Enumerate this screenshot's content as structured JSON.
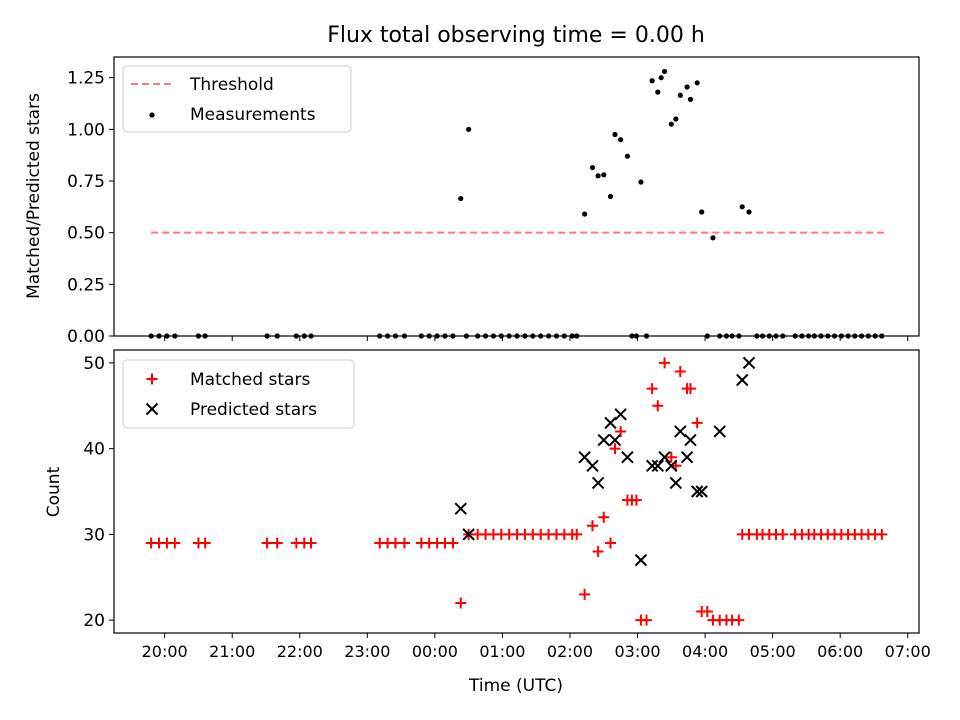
{
  "colors": {
    "threshold": "#ff7b7b",
    "measurements": "#000000",
    "matched": "#ff0000",
    "predicted": "#000000",
    "axes": "#000000"
  },
  "chart_data": [
    {
      "type": "scatter",
      "title": "Flux total observing time = 0.00 h",
      "xlabel": "",
      "ylabel": "Matched/Predicted stars",
      "xlim": [
        "19:15",
        "07:10"
      ],
      "ylim": [
        0,
        1.35
      ],
      "yticks": [
        0.0,
        0.25,
        0.5,
        0.75,
        1.0,
        1.25
      ],
      "ytick_labels": [
        "0.00",
        "0.25",
        "0.50",
        "0.75",
        "1.00",
        "1.25"
      ],
      "legend": {
        "placement": "upper-left",
        "entries": [
          {
            "label": "Threshold",
            "style": "dashed-line"
          },
          {
            "label": "Measurements",
            "style": "dot"
          }
        ]
      },
      "threshold": {
        "value": 0.5,
        "x_start": "19:48",
        "x_end": "06:40"
      },
      "series": [
        {
          "name": "Measurements",
          "marker": "dot",
          "points": [
            [
              "19:48",
              0
            ],
            [
              "19:55",
              0
            ],
            [
              "20:02",
              0
            ],
            [
              "20:09",
              0
            ],
            [
              "20:30",
              0
            ],
            [
              "20:36",
              0
            ],
            [
              "21:31",
              0
            ],
            [
              "21:40",
              0
            ],
            [
              "21:57",
              0
            ],
            [
              "22:04",
              0
            ],
            [
              "22:10",
              0
            ],
            [
              "23:11",
              0
            ],
            [
              "23:18",
              0
            ],
            [
              "23:25",
              0
            ],
            [
              "23:33",
              0
            ],
            [
              "23:48",
              0
            ],
            [
              "23:55",
              0
            ],
            [
              "00:02",
              0
            ],
            [
              "00:09",
              0
            ],
            [
              "00:16",
              0
            ],
            [
              "00:23",
              0.665
            ],
            [
              "00:28",
              0
            ],
            [
              "00:30",
              1.0
            ],
            [
              "00:38",
              0
            ],
            [
              "00:45",
              0
            ],
            [
              "00:52",
              0
            ],
            [
              "00:59",
              0
            ],
            [
              "01:06",
              0
            ],
            [
              "01:13",
              0
            ],
            [
              "01:20",
              0
            ],
            [
              "01:27",
              0
            ],
            [
              "01:34",
              0
            ],
            [
              "01:41",
              0
            ],
            [
              "01:48",
              0
            ],
            [
              "01:55",
              0
            ],
            [
              "02:02",
              0
            ],
            [
              "02:06",
              0
            ],
            [
              "02:13",
              0.59
            ],
            [
              "02:20",
              0.815
            ],
            [
              "02:25",
              0.775
            ],
            [
              "02:30",
              0.78
            ],
            [
              "02:36",
              0.675
            ],
            [
              "02:40",
              0.975
            ],
            [
              "02:45",
              0.95
            ],
            [
              "02:51",
              0.87
            ],
            [
              "02:55",
              0
            ],
            [
              "02:59",
              0
            ],
            [
              "03:03",
              0.745
            ],
            [
              "03:08",
              0
            ],
            [
              "03:13",
              1.235
            ],
            [
              "03:18",
              1.18
            ],
            [
              "03:21",
              1.25
            ],
            [
              "03:24",
              1.28
            ],
            [
              "03:30",
              1.025
            ],
            [
              "03:34",
              1.05
            ],
            [
              "03:38",
              1.165
            ],
            [
              "03:44",
              1.205
            ],
            [
              "03:47",
              1.145
            ],
            [
              "03:53",
              1.225
            ],
            [
              "03:57",
              0.6
            ],
            [
              "04:02",
              0
            ],
            [
              "04:07",
              0.475
            ],
            [
              "04:13",
              0
            ],
            [
              "04:19",
              0
            ],
            [
              "04:24",
              0
            ],
            [
              "04:30",
              0
            ],
            [
              "04:33",
              0.625
            ],
            [
              "04:39",
              0.6
            ],
            [
              "04:46",
              0
            ],
            [
              "04:51",
              0
            ],
            [
              "04:57",
              0
            ],
            [
              "05:03",
              0
            ],
            [
              "05:09",
              0
            ],
            [
              "05:20",
              0
            ],
            [
              "05:26",
              0
            ],
            [
              "05:32",
              0
            ],
            [
              "05:37",
              0
            ],
            [
              "05:43",
              0
            ],
            [
              "05:49",
              0
            ],
            [
              "05:55",
              0
            ],
            [
              "06:01",
              0
            ],
            [
              "06:07",
              0
            ],
            [
              "06:13",
              0
            ],
            [
              "06:19",
              0
            ],
            [
              "06:25",
              0
            ],
            [
              "06:31",
              0
            ],
            [
              "06:37",
              0
            ]
          ]
        }
      ]
    },
    {
      "type": "scatter",
      "title": "",
      "xlabel": "Time (UTC)",
      "ylabel": "Count",
      "xlim": [
        "19:15",
        "07:10"
      ],
      "ylim": [
        18.5,
        51.5
      ],
      "yticks": [
        20,
        30,
        40,
        50
      ],
      "xticks": [
        "20:00",
        "21:00",
        "22:00",
        "23:00",
        "00:00",
        "01:00",
        "02:00",
        "03:00",
        "04:00",
        "05:00",
        "06:00",
        "07:00"
      ],
      "legend": {
        "placement": "upper-left",
        "entries": [
          {
            "label": "Matched stars",
            "style": "plus"
          },
          {
            "label": "Predicted stars",
            "style": "cross"
          }
        ]
      },
      "series": [
        {
          "name": "Matched stars",
          "marker": "plus",
          "points": [
            [
              "19:48",
              29
            ],
            [
              "19:55",
              29
            ],
            [
              "20:02",
              29
            ],
            [
              "20:09",
              29
            ],
            [
              "20:30",
              29
            ],
            [
              "20:36",
              29
            ],
            [
              "21:31",
              29
            ],
            [
              "21:40",
              29
            ],
            [
              "21:57",
              29
            ],
            [
              "22:04",
              29
            ],
            [
              "22:10",
              29
            ],
            [
              "23:11",
              29
            ],
            [
              "23:18",
              29
            ],
            [
              "23:25",
              29
            ],
            [
              "23:33",
              29
            ],
            [
              "23:48",
              29
            ],
            [
              "23:55",
              29
            ],
            [
              "00:02",
              29
            ],
            [
              "00:09",
              29
            ],
            [
              "00:16",
              29
            ],
            [
              "00:23",
              22
            ],
            [
              "00:30",
              30
            ],
            [
              "00:38",
              30
            ],
            [
              "00:45",
              30
            ],
            [
              "00:52",
              30
            ],
            [
              "00:59",
              30
            ],
            [
              "01:06",
              30
            ],
            [
              "01:13",
              30
            ],
            [
              "01:20",
              30
            ],
            [
              "01:27",
              30
            ],
            [
              "01:34",
              30
            ],
            [
              "01:41",
              30
            ],
            [
              "01:48",
              30
            ],
            [
              "01:55",
              30
            ],
            [
              "02:02",
              30
            ],
            [
              "02:06",
              30
            ],
            [
              "02:13",
              23
            ],
            [
              "02:20",
              31
            ],
            [
              "02:25",
              28
            ],
            [
              "02:30",
              32
            ],
            [
              "02:36",
              29
            ],
            [
              "02:40",
              40
            ],
            [
              "02:45",
              42
            ],
            [
              "02:51",
              34
            ],
            [
              "02:55",
              34
            ],
            [
              "02:59",
              34
            ],
            [
              "03:03",
              20
            ],
            [
              "03:08",
              20
            ],
            [
              "03:13",
              47
            ],
            [
              "03:18",
              45
            ],
            [
              "03:24",
              50
            ],
            [
              "03:30",
              39
            ],
            [
              "03:34",
              38
            ],
            [
              "03:38",
              49
            ],
            [
              "03:44",
              47
            ],
            [
              "03:47",
              47
            ],
            [
              "03:53",
              43
            ],
            [
              "03:57",
              21
            ],
            [
              "04:02",
              21
            ],
            [
              "04:07",
              20
            ],
            [
              "04:13",
              20
            ],
            [
              "04:19",
              20
            ],
            [
              "04:24",
              20
            ],
            [
              "04:30",
              20
            ],
            [
              "04:33",
              30
            ],
            [
              "04:39",
              30
            ],
            [
              "04:46",
              30
            ],
            [
              "04:51",
              30
            ],
            [
              "04:57",
              30
            ],
            [
              "05:03",
              30
            ],
            [
              "05:09",
              30
            ],
            [
              "05:20",
              30
            ],
            [
              "05:26",
              30
            ],
            [
              "05:32",
              30
            ],
            [
              "05:37",
              30
            ],
            [
              "05:43",
              30
            ],
            [
              "05:49",
              30
            ],
            [
              "05:55",
              30
            ],
            [
              "06:01",
              30
            ],
            [
              "06:07",
              30
            ],
            [
              "06:13",
              30
            ],
            [
              "06:19",
              30
            ],
            [
              "06:25",
              30
            ],
            [
              "06:31",
              30
            ],
            [
              "06:37",
              30
            ]
          ]
        },
        {
          "name": "Predicted stars",
          "marker": "cross",
          "points": [
            [
              "00:23",
              33
            ],
            [
              "00:30",
              30
            ],
            [
              "02:13",
              39
            ],
            [
              "02:20",
              38
            ],
            [
              "02:25",
              36
            ],
            [
              "02:30",
              41
            ],
            [
              "02:36",
              43
            ],
            [
              "02:40",
              41
            ],
            [
              "02:45",
              44
            ],
            [
              "02:51",
              39
            ],
            [
              "03:03",
              27
            ],
            [
              "03:13",
              38
            ],
            [
              "03:18",
              38
            ],
            [
              "03:24",
              39
            ],
            [
              "03:30",
              38
            ],
            [
              "03:34",
              36
            ],
            [
              "03:38",
              42
            ],
            [
              "03:44",
              39
            ],
            [
              "03:47",
              41
            ],
            [
              "03:53",
              35
            ],
            [
              "03:57",
              35
            ],
            [
              "04:13",
              42
            ],
            [
              "04:33",
              48
            ],
            [
              "04:39",
              50
            ]
          ]
        }
      ]
    }
  ]
}
